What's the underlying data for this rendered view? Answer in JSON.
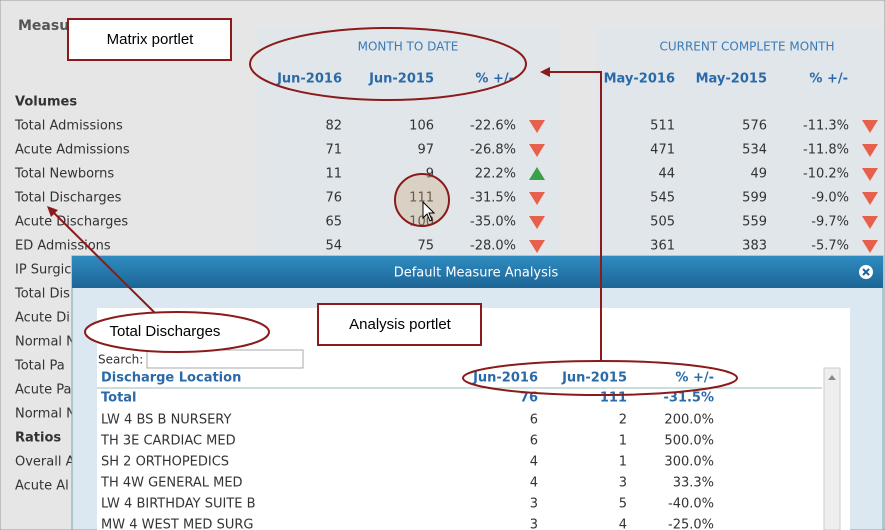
{
  "matrix": {
    "title": "Measu",
    "groups": [
      "MONTH TO DATE",
      "CURRENT COMPLETE MONTH"
    ],
    "columns": [
      "Jun-2016",
      "Jun-2015",
      "% +/-",
      "May-2016",
      "May-2015",
      "% +/-"
    ],
    "sections": [
      {
        "name": "Volumes",
        "rows": [
          {
            "label": "Total Admissions",
            "cells": [
              "82",
              "106",
              "-22.6%",
              "511",
              "576",
              "-11.3%"
            ]
          },
          {
            "label": "Acute Admissions",
            "cells": [
              "71",
              "97",
              "-26.8%",
              "471",
              "534",
              "-11.8%"
            ]
          },
          {
            "label": "Total Newborns",
            "cells": [
              "11",
              "9",
              "22.2%",
              "44",
              "49",
              "-10.2%"
            ]
          },
          {
            "label": "Total Discharges",
            "cells": [
              "76",
              "111",
              "-31.5%",
              "545",
              "599",
              "-9.0%"
            ]
          },
          {
            "label": "Acute Discharges",
            "cells": [
              "65",
              "100",
              "-35.0%",
              "505",
              "559",
              "-9.7%"
            ]
          },
          {
            "label": "ED Admissions",
            "cells": [
              "54",
              "75",
              "-28.0%",
              "361",
              "383",
              "-5.7%"
            ]
          },
          {
            "label": "IP Surgic"
          },
          {
            "label": "Total Dis"
          },
          {
            "label": "Acute Di"
          },
          {
            "label": "Normal N"
          },
          {
            "label": "Total Pa"
          },
          {
            "label": "Acute Pa"
          },
          {
            "label": "Normal N"
          }
        ]
      },
      {
        "name": "Ratios",
        "rows": [
          {
            "label": "Overall A"
          },
          {
            "label": "Acute Al"
          }
        ]
      }
    ]
  },
  "callouts": {
    "matrix": "Matrix portlet",
    "discharges": "Total Discharges",
    "analysis": "Analysis portlet"
  },
  "dialog": {
    "title": "Default Measure Analysis",
    "search_label": "Search:",
    "columns": [
      "Discharge Location",
      "Jun-2016",
      "Jun-2015",
      "% +/-"
    ],
    "total": [
      "Total",
      "76",
      "111",
      "-31.5%"
    ],
    "rows": [
      [
        "LW 4 BS B NURSERY",
        "6",
        "2",
        "200.0%"
      ],
      [
        "TH 3E CARDIAC MED",
        "6",
        "1",
        "500.0%"
      ],
      [
        "SH 2 ORTHOPEDICS",
        "4",
        "1",
        "300.0%"
      ],
      [
        "TH 4W GENERAL MED",
        "4",
        "3",
        "33.3%"
      ],
      [
        "LW 4 BIRTHDAY SUITE B",
        "3",
        "5",
        "-40.0%"
      ],
      [
        "MW 4 WEST MED SURG",
        "3",
        "4",
        "-25.0%"
      ]
    ]
  }
}
